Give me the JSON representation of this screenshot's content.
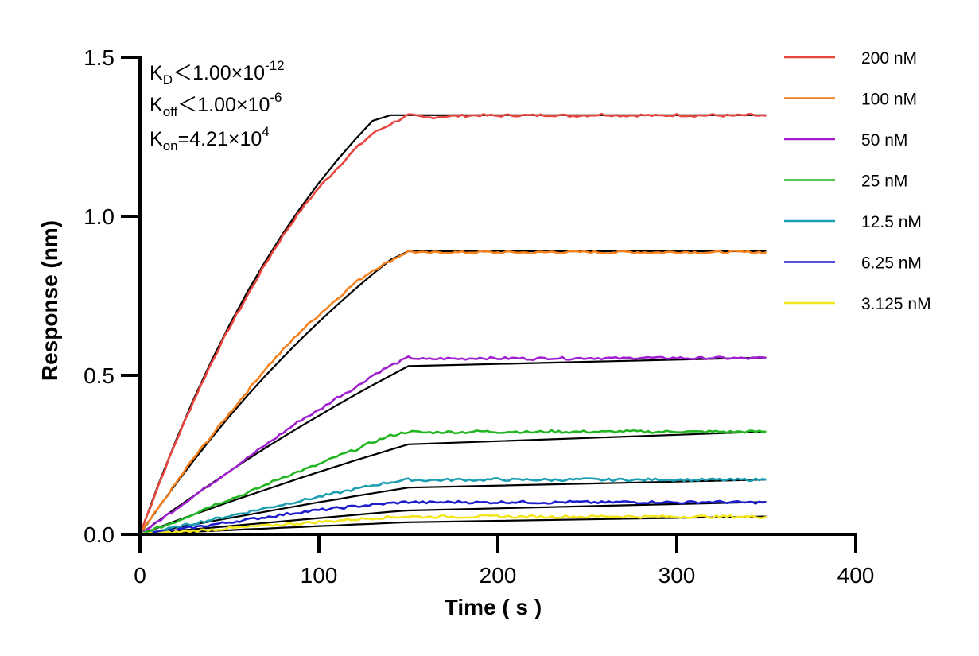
{
  "chart_data": {
    "type": "line",
    "title": "",
    "xlabel": "Time ( s )",
    "ylabel": "Response (nm)",
    "xlim": [
      0,
      400
    ],
    "ylim": [
      0,
      1.5
    ],
    "x_ticks": [
      "0",
      "100",
      "200",
      "300",
      "400"
    ],
    "y_ticks": [
      "0.0",
      "0.5",
      "1.0",
      "1.5"
    ],
    "grid": false,
    "legend_position": "top-right",
    "fit_color": "#000000",
    "x": [
      0,
      10,
      20,
      30,
      40,
      50,
      60,
      70,
      80,
      90,
      100,
      110,
      120,
      130,
      140,
      150,
      160,
      170,
      180,
      190,
      200,
      210,
      220,
      230,
      240,
      250,
      260,
      270,
      280,
      290,
      300,
      310,
      320,
      330,
      340,
      350
    ],
    "series": [
      {
        "name": "200 nM",
        "color": "#e8473f",
        "values": [
          0,
          0.15,
          0.29,
          0.42,
          0.54,
          0.65,
          0.75,
          0.85,
          0.94,
          1.02,
          1.09,
          1.15,
          1.21,
          1.26,
          1.29,
          1.318,
          1.31,
          1.314,
          1.316,
          1.318,
          1.316,
          1.318,
          1.317,
          1.319,
          1.316,
          1.318,
          1.32,
          1.317,
          1.318,
          1.316,
          1.319,
          1.317,
          1.318,
          1.316,
          1.318,
          1.316
        ]
      },
      {
        "name": "100 nM",
        "color": "#f5821f",
        "values": [
          0,
          0.08,
          0.16,
          0.24,
          0.31,
          0.38,
          0.45,
          0.52,
          0.58,
          0.64,
          0.69,
          0.74,
          0.79,
          0.83,
          0.86,
          0.89,
          0.884,
          0.887,
          0.886,
          0.888,
          0.886,
          0.887,
          0.885,
          0.888,
          0.887,
          0.888,
          0.886,
          0.888,
          0.887,
          0.886,
          0.888,
          0.887,
          0.886,
          0.888,
          0.887,
          0.887
        ]
      },
      {
        "name": "50 nM",
        "color": "#a020d0",
        "values": [
          0,
          0.04,
          0.08,
          0.12,
          0.16,
          0.2,
          0.24,
          0.28,
          0.32,
          0.36,
          0.39,
          0.43,
          0.46,
          0.5,
          0.53,
          0.556,
          0.55,
          0.553,
          0.552,
          0.555,
          0.553,
          0.554,
          0.552,
          0.555,
          0.553,
          0.555,
          0.554,
          0.553,
          0.556,
          0.554,
          0.555,
          0.553,
          0.555,
          0.554,
          0.553,
          0.555
        ]
      },
      {
        "name": "25 nM",
        "color": "#22b522",
        "values": [
          0,
          0.02,
          0.04,
          0.065,
          0.09,
          0.11,
          0.13,
          0.155,
          0.18,
          0.2,
          0.22,
          0.245,
          0.265,
          0.29,
          0.31,
          0.323,
          0.32,
          0.322,
          0.321,
          0.324,
          0.322,
          0.323,
          0.321,
          0.324,
          0.322,
          0.323,
          0.322,
          0.324,
          0.323,
          0.322,
          0.324,
          0.322,
          0.323,
          0.322,
          0.323,
          0.323
        ]
      },
      {
        "name": "12.5 nM",
        "color": "#1a9eb0",
        "values": [
          0,
          0.01,
          0.022,
          0.034,
          0.046,
          0.058,
          0.07,
          0.082,
          0.094,
          0.106,
          0.118,
          0.13,
          0.142,
          0.154,
          0.164,
          0.172,
          0.17,
          0.171,
          0.172,
          0.171,
          0.173,
          0.171,
          0.172,
          0.171,
          0.172,
          0.173,
          0.171,
          0.172,
          0.171,
          0.173,
          0.172,
          0.171,
          0.172,
          0.171,
          0.172,
          0.172
        ]
      },
      {
        "name": "6.25 nM",
        "color": "#1c1ccc",
        "values": [
          0,
          0.006,
          0.014,
          0.022,
          0.03,
          0.038,
          0.046,
          0.054,
          0.062,
          0.07,
          0.076,
          0.082,
          0.088,
          0.093,
          0.098,
          0.102,
          0.1,
          0.101,
          0.102,
          0.1,
          0.101,
          0.102,
          0.101,
          0.1,
          0.102,
          0.101,
          0.1,
          0.102,
          0.101,
          0.102,
          0.1,
          0.101,
          0.102,
          0.101,
          0.1,
          0.101
        ]
      },
      {
        "name": "3.125 nM",
        "color": "#f2e61e",
        "values": [
          0,
          0.003,
          0.007,
          0.011,
          0.015,
          0.019,
          0.023,
          0.027,
          0.031,
          0.035,
          0.039,
          0.043,
          0.047,
          0.051,
          0.054,
          0.056,
          0.055,
          0.056,
          0.055,
          0.056,
          0.057,
          0.055,
          0.056,
          0.055,
          0.056,
          0.055,
          0.057,
          0.056,
          0.055,
          0.056,
          0.055,
          0.056,
          0.055,
          0.056,
          0.055,
          0.055
        ]
      }
    ],
    "fits": [
      [
        0,
        0.153,
        0.294,
        0.425,
        0.546,
        0.658,
        0.762,
        0.858,
        0.947,
        1.029,
        1.105,
        1.175,
        1.24,
        1.3,
        1.355,
        1.405
      ],
      [
        0,
        0.081,
        0.158,
        0.232,
        0.303,
        0.371,
        0.436,
        0.498,
        0.557,
        0.614,
        0.668,
        0.72,
        0.77,
        0.818,
        0.863,
        0.906
      ],
      [
        0,
        0.041,
        0.082,
        0.121,
        0.16,
        0.198,
        0.235,
        0.271,
        0.306,
        0.34,
        0.373,
        0.406,
        0.438,
        0.469,
        0.499,
        0.529
      ],
      [
        0,
        0.021,
        0.042,
        0.062,
        0.082,
        0.102,
        0.121,
        0.14,
        0.159,
        0.178,
        0.196,
        0.214,
        0.232,
        0.249,
        0.266,
        0.283
      ],
      [
        0,
        0.01,
        0.021,
        0.031,
        0.041,
        0.051,
        0.061,
        0.071,
        0.081,
        0.091,
        0.101,
        0.11,
        0.12,
        0.129,
        0.138,
        0.147
      ],
      [
        0,
        0.005,
        0.011,
        0.016,
        0.021,
        0.026,
        0.031,
        0.036,
        0.041,
        0.046,
        0.051,
        0.056,
        0.061,
        0.066,
        0.071,
        0.075
      ],
      [
        0,
        0.003,
        0.005,
        0.008,
        0.011,
        0.013,
        0.016,
        0.018,
        0.021,
        0.023,
        0.026,
        0.028,
        0.031,
        0.033,
        0.036,
        0.038
      ]
    ],
    "annotations": [
      {
        "main": "K",
        "sub": "D",
        "text": "＜1.00×10",
        "sup": "-12"
      },
      {
        "main": "K",
        "sub": "off",
        "text": "＜1.00×10",
        "sup": "-6"
      },
      {
        "main": "K",
        "sub": "on",
        "text": "=4.21×10",
        "sup": "4"
      }
    ]
  }
}
